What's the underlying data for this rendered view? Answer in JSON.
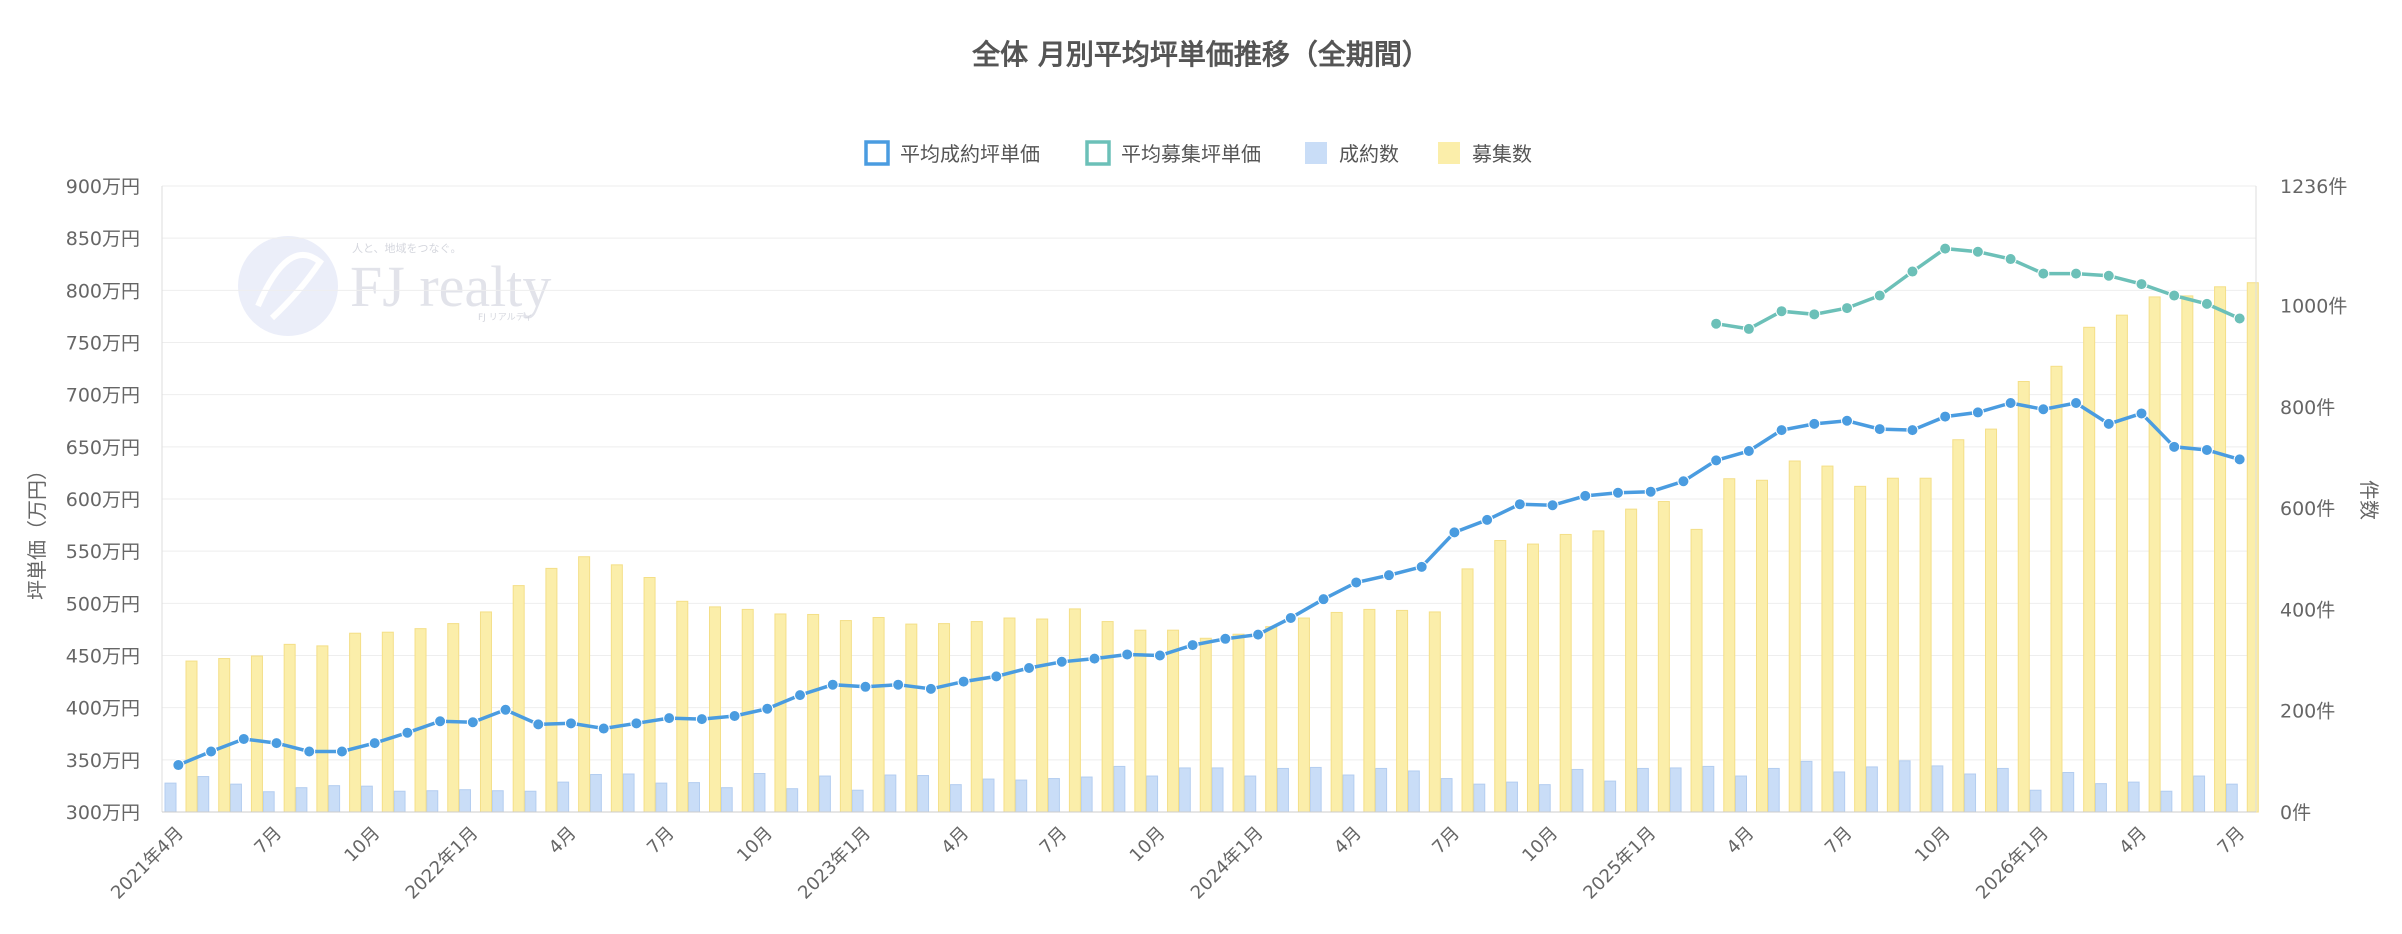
{
  "chart_data": {
    "type": "bar",
    "title": "全体 月別平均坪単価推移（全期間）",
    "ylabel": "坪単価（万円）",
    "y2label": "件数",
    "ylim": [
      300,
      900
    ],
    "y2lim": [
      0,
      1236
    ],
    "y_ticks": [
      "900万円",
      "850万円",
      "800万円",
      "750万円",
      "700万円",
      "650万円",
      "600万円",
      "550万円",
      "500万円",
      "450万円",
      "400万円",
      "350万円",
      "300万円"
    ],
    "y2_ticks": [
      "1236件",
      "1000件",
      "800件",
      "600件",
      "400件",
      "200件",
      "0件"
    ],
    "x_tick_labels": [
      {
        "i": 0,
        "label": "2021年4月"
      },
      {
        "i": 3,
        "label": "7月"
      },
      {
        "i": 6,
        "label": "10月"
      },
      {
        "i": 9,
        "label": "2022年1月"
      },
      {
        "i": 12,
        "label": "4月"
      },
      {
        "i": 15,
        "label": "7月"
      },
      {
        "i": 18,
        "label": "10月"
      },
      {
        "i": 21,
        "label": "2023年1月"
      },
      {
        "i": 24,
        "label": "4月"
      },
      {
        "i": 27,
        "label": "7月"
      },
      {
        "i": 30,
        "label": "10月"
      },
      {
        "i": 33,
        "label": "2024年1月"
      },
      {
        "i": 36,
        "label": "4月"
      },
      {
        "i": 39,
        "label": "7月"
      },
      {
        "i": 42,
        "label": "10月"
      },
      {
        "i": 45,
        "label": "2025年1月"
      },
      {
        "i": 48,
        "label": "4月"
      },
      {
        "i": 51,
        "label": "7月"
      },
      {
        "i": 54,
        "label": "10月"
      },
      {
        "i": 57,
        "label": "2026年1月"
      },
      {
        "i": 60,
        "label": "4月"
      },
      {
        "i": 63,
        "label": "7月"
      }
    ],
    "legend": {
      "placement": "top",
      "items": [
        {
          "label": "平均成約坪単価",
          "color": "#4a9ce0",
          "kind": "line"
        },
        {
          "label": "平均募集坪単価",
          "color": "#6cc0b8",
          "kind": "line"
        },
        {
          "label": "成約数",
          "color": "#c9ddf7",
          "kind": "bar"
        },
        {
          "label": "募集数",
          "color": "#fbeeaa",
          "kind": "bar"
        }
      ]
    },
    "series": [
      {
        "name": "平均成約坪単価",
        "type": "line",
        "axis": "left",
        "color": "#4a9ce0",
        "values": [
          345,
          358,
          370,
          366,
          358,
          358,
          366,
          376,
          387,
          386,
          398,
          384,
          385,
          380,
          385,
          390,
          389,
          392,
          399,
          412,
          422,
          420,
          422,
          418,
          425,
          430,
          438,
          444,
          447,
          451,
          450,
          460,
          466,
          470,
          486,
          504,
          520,
          527,
          535,
          568,
          580,
          595,
          594,
          603,
          606,
          607,
          617,
          637,
          646,
          666,
          672,
          675,
          667,
          666,
          679,
          683,
          692,
          686,
          692,
          672,
          682,
          650,
          647,
          638
        ]
      },
      {
        "name": "平均募集坪単価",
        "type": "line",
        "axis": "left",
        "color": "#6cc0b8",
        "values": [
          null,
          null,
          null,
          null,
          null,
          null,
          null,
          null,
          null,
          null,
          null,
          null,
          null,
          null,
          null,
          null,
          null,
          null,
          null,
          null,
          null,
          null,
          null,
          null,
          null,
          null,
          null,
          null,
          null,
          null,
          null,
          null,
          null,
          null,
          null,
          null,
          null,
          null,
          null,
          null,
          null,
          null,
          null,
          null,
          null,
          null,
          null,
          768,
          763,
          780,
          777,
          783,
          795,
          818,
          840,
          837,
          830,
          816,
          816,
          814,
          806,
          795,
          787,
          773
        ]
      },
      {
        "name": "成約数",
        "type": "bar",
        "axis": "right",
        "color": "#c9ddf7",
        "values": [
          57,
          70,
          55,
          40,
          48,
          52,
          51,
          41,
          42,
          44,
          42,
          41,
          59,
          74,
          75,
          57,
          58,
          48,
          76,
          46,
          71,
          43,
          73,
          72,
          54,
          65,
          63,
          66,
          69,
          90,
          71,
          87,
          87,
          71,
          86,
          88,
          73,
          86,
          81,
          66,
          55,
          59,
          54,
          84,
          61,
          86,
          87,
          90,
          71,
          86,
          100,
          79,
          89,
          101,
          91,
          75,
          86,
          43,
          78,
          56,
          59,
          41,
          71,
          55
        ]
      },
      {
        "name": "募集数",
        "type": "bar",
        "axis": "right",
        "color": "#fbeeaa",
        "values": [
          298,
          303,
          308,
          331,
          328,
          353,
          355,
          362,
          372,
          395,
          447,
          481,
          504,
          488,
          463,
          416,
          405,
          400,
          391,
          390,
          378,
          384,
          371,
          372,
          376,
          383,
          381,
          401,
          376,
          359,
          359,
          343,
          351,
          366,
          383,
          394,
          400,
          398,
          395,
          480,
          536,
          529,
          548,
          555,
          598,
          613,
          558,
          658,
          655,
          693,
          683,
          643,
          659,
          659,
          735,
          756,
          850,
          880,
          957,
          981,
          1017,
          1019,
          1037,
          1045
        ]
      }
    ]
  },
  "watermark": {
    "text": "FJ realty",
    "tagline": "人と、地域をつなぐ。",
    "subtext": "FJ リアルティ"
  }
}
